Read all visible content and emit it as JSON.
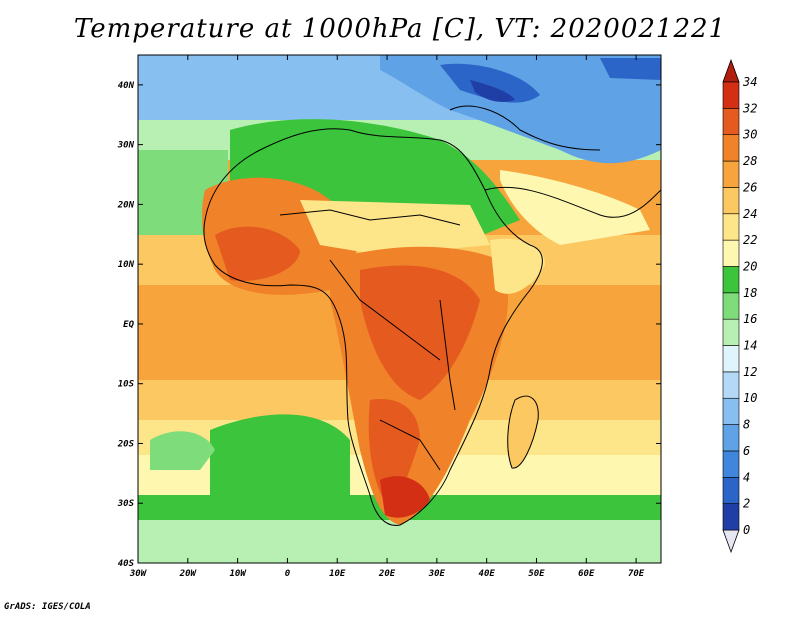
{
  "title": "Temperature at 1000hPa [C], VT: 2020021221",
  "footer": "GrADS: IGES/COLA",
  "map": {
    "variable": "Temperature at 1000hPa",
    "units": "C",
    "valid_time": "2020021221",
    "lon_range": [
      -30,
      75
    ],
    "lat_range": [
      -40,
      45
    ],
    "lat_ticks": [
      {
        "v": 40,
        "label": "40N"
      },
      {
        "v": 30,
        "label": "30N"
      },
      {
        "v": 20,
        "label": "20N"
      },
      {
        "v": 10,
        "label": "10N"
      },
      {
        "v": 0,
        "label": "EQ"
      },
      {
        "v": -10,
        "label": "10S"
      },
      {
        "v": -20,
        "label": "20S"
      },
      {
        "v": -30,
        "label": "30S"
      },
      {
        "v": -40,
        "label": "40S"
      }
    ],
    "lon_ticks": [
      {
        "v": -30,
        "label": "30W"
      },
      {
        "v": -20,
        "label": "20W"
      },
      {
        "v": -10,
        "label": "10W"
      },
      {
        "v": 0,
        "label": "0"
      },
      {
        "v": 10,
        "label": "10E"
      },
      {
        "v": 20,
        "label": "20E"
      },
      {
        "v": 30,
        "label": "30E"
      },
      {
        "v": 40,
        "label": "40E"
      },
      {
        "v": 50,
        "label": "50E"
      },
      {
        "v": 60,
        "label": "60E"
      },
      {
        "v": 70,
        "label": "70E"
      }
    ],
    "colorbar": {
      "levels": [
        0,
        2,
        4,
        6,
        8,
        10,
        12,
        14,
        16,
        18,
        20,
        22,
        24,
        26,
        28,
        30,
        32,
        34
      ],
      "colors": [
        "#1a1a7a",
        "#1f3fa6",
        "#2c65c8",
        "#3f86dc",
        "#5fa3e6",
        "#86bff0",
        "#b3d9f7",
        "#dff4fb",
        "#b8efb3",
        "#7fdc7a",
        "#3cc43c",
        "#fdf7b0",
        "#fde68a",
        "#fbc862",
        "#f7a43d",
        "#f08229",
        "#e55a1e",
        "#d22f14"
      ],
      "under_color": "#e6e6f5",
      "over_color": "#b21d0e"
    }
  }
}
